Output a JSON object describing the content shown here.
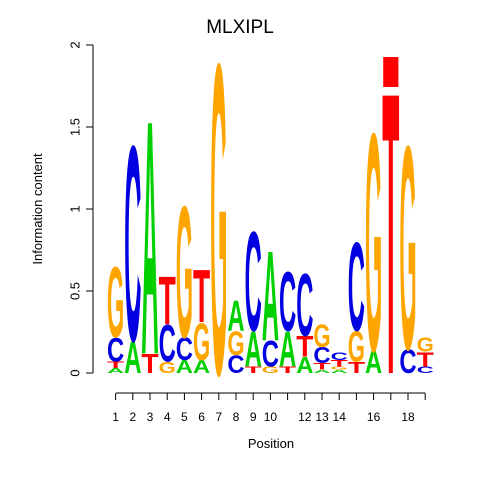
{
  "chart_data": {
    "type": "sequence-logo",
    "title": "MLXIPL",
    "xlabel": "Position",
    "ylabel": "Information content",
    "ylim": [
      0,
      2
    ],
    "yticks": [
      0,
      0.5,
      1,
      1.5,
      2
    ],
    "ytick_labels": [
      "0",
      "0.5",
      "1",
      "1.5",
      "2"
    ],
    "xtick_labels": [
      "1",
      "2",
      "3",
      "4",
      "5",
      "6",
      "7",
      "8",
      "9",
      "10",
      "12",
      "13",
      "14",
      "16",
      "18"
    ],
    "xtick_positions": [
      1,
      2,
      3,
      4,
      5,
      6,
      7,
      8,
      9,
      10,
      12,
      13,
      14,
      16,
      18
    ],
    "n_positions": 19,
    "colors": {
      "A": "#00d000",
      "C": "#0000e0",
      "G": "#ffa500",
      "T": "#ff0000"
    },
    "positions": [
      [
        [
          "A",
          0.03
        ],
        [
          "T",
          0.04
        ],
        [
          "C",
          0.15
        ],
        [
          "G",
          0.44
        ]
      ],
      [
        [
          "A",
          0.2
        ],
        [
          "C",
          1.22
        ]
      ],
      [
        [
          "T",
          0.12
        ],
        [
          "A",
          1.46
        ]
      ],
      [
        [
          "G",
          0.07
        ],
        [
          "C",
          0.23
        ],
        [
          "T",
          0.3
        ]
      ],
      [
        [
          "A",
          0.08
        ],
        [
          "C",
          0.14
        ],
        [
          "G",
          0.82
        ]
      ],
      [
        [
          "A",
          0.08
        ],
        [
          "G",
          0.23
        ],
        [
          "T",
          0.33
        ]
      ],
      [
        [
          "G",
          1.94
        ]
      ],
      [
        [
          "C",
          0.11
        ],
        [
          "G",
          0.15
        ],
        [
          "A",
          0.19
        ]
      ],
      [
        [
          "T",
          0.04
        ],
        [
          "A",
          0.22
        ],
        [
          "C",
          0.62
        ]
      ],
      [
        [
          "G",
          0.04
        ],
        [
          "C",
          0.16
        ],
        [
          "A",
          0.56
        ]
      ],
      [
        [
          "T",
          0.04
        ],
        [
          "A",
          0.22
        ],
        [
          "C",
          0.37
        ]
      ],
      [
        [
          "A",
          0.1
        ],
        [
          "T",
          0.13
        ],
        [
          "C",
          0.39
        ]
      ],
      [
        [
          "A",
          0.02
        ],
        [
          "T",
          0.04
        ],
        [
          "C",
          0.1
        ],
        [
          "G",
          0.14
        ]
      ],
      [
        [
          "A",
          0.02
        ],
        [
          "G",
          0.02
        ],
        [
          "T",
          0.04
        ],
        [
          "C",
          0.05
        ]
      ],
      [
        [
          "T",
          0.07
        ],
        [
          "G",
          0.19
        ],
        [
          "C",
          0.55
        ]
      ],
      [
        [
          "A",
          0.14
        ],
        [
          "G",
          1.36
        ]
      ],
      [
        [
          "T",
          1.76
        ],
        [
          "#",
          0
        ]
      ],
      [
        [
          "C",
          0.15
        ],
        [
          "G",
          1.27
        ]
      ],
      [
        [
          "C",
          0.04
        ],
        [
          "T",
          0.09
        ],
        [
          "G",
          0.09
        ]
      ]
    ]
  }
}
